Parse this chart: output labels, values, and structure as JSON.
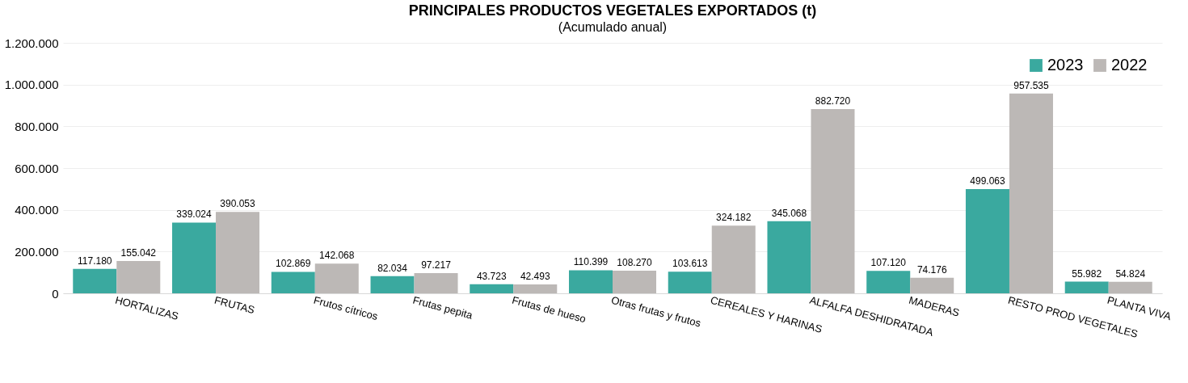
{
  "chart_data": {
    "type": "bar",
    "title": "PRINCIPALES PRODUCTOS VEGETALES EXPORTADOS (t)",
    "subtitle": "(Acumulado anual)",
    "categories": [
      "HORTALIZAS",
      "FRUTAS",
      "Frutos cítricos",
      "Frutas pepita",
      "Frutas de hueso",
      "Otras frutas y frutos",
      "CEREALES Y HARINAS",
      "ALFALFA DESHIDRATADA",
      "MADERAS",
      "RESTO PROD VEGETALES",
      "PLANTA VIVA"
    ],
    "series": [
      {
        "name": "2023",
        "color": "#3aa99f",
        "values": [
          117180,
          339024,
          102869,
          82034,
          43723,
          110399,
          103613,
          345068,
          107120,
          499063,
          55982
        ],
        "value_labels": [
          "117.180",
          "339.024",
          "102.869",
          "82.034",
          "43.723",
          "110.399",
          "103.613",
          "345.068",
          "107.120",
          "499.063",
          "55.982"
        ]
      },
      {
        "name": "2022",
        "color": "#bcb8b6",
        "values": [
          155042,
          390053,
          142068,
          97217,
          42493,
          108270,
          324182,
          882720,
          74176,
          957535,
          54824
        ],
        "value_labels": [
          "155.042",
          "390.053",
          "142.068",
          "97.217",
          "42.493",
          "108.270",
          "324.182",
          "882.720",
          "74.176",
          "957.535",
          "54.824"
        ]
      }
    ],
    "ylim": [
      0,
      1200000
    ],
    "yticks": [
      0,
      {
        "value": 200000,
        "label": "200.000"
      },
      {
        "value": 400000,
        "label": "400.000"
      },
      {
        "value": 600000,
        "label": "600.000"
      },
      {
        "value": 800000,
        "label": "800.000"
      },
      {
        "value": 1000000,
        "label": "1.000.000"
      },
      {
        "value": 1200000,
        "label": "1.200.000"
      }
    ],
    "grid": "y",
    "legend": "top right"
  }
}
